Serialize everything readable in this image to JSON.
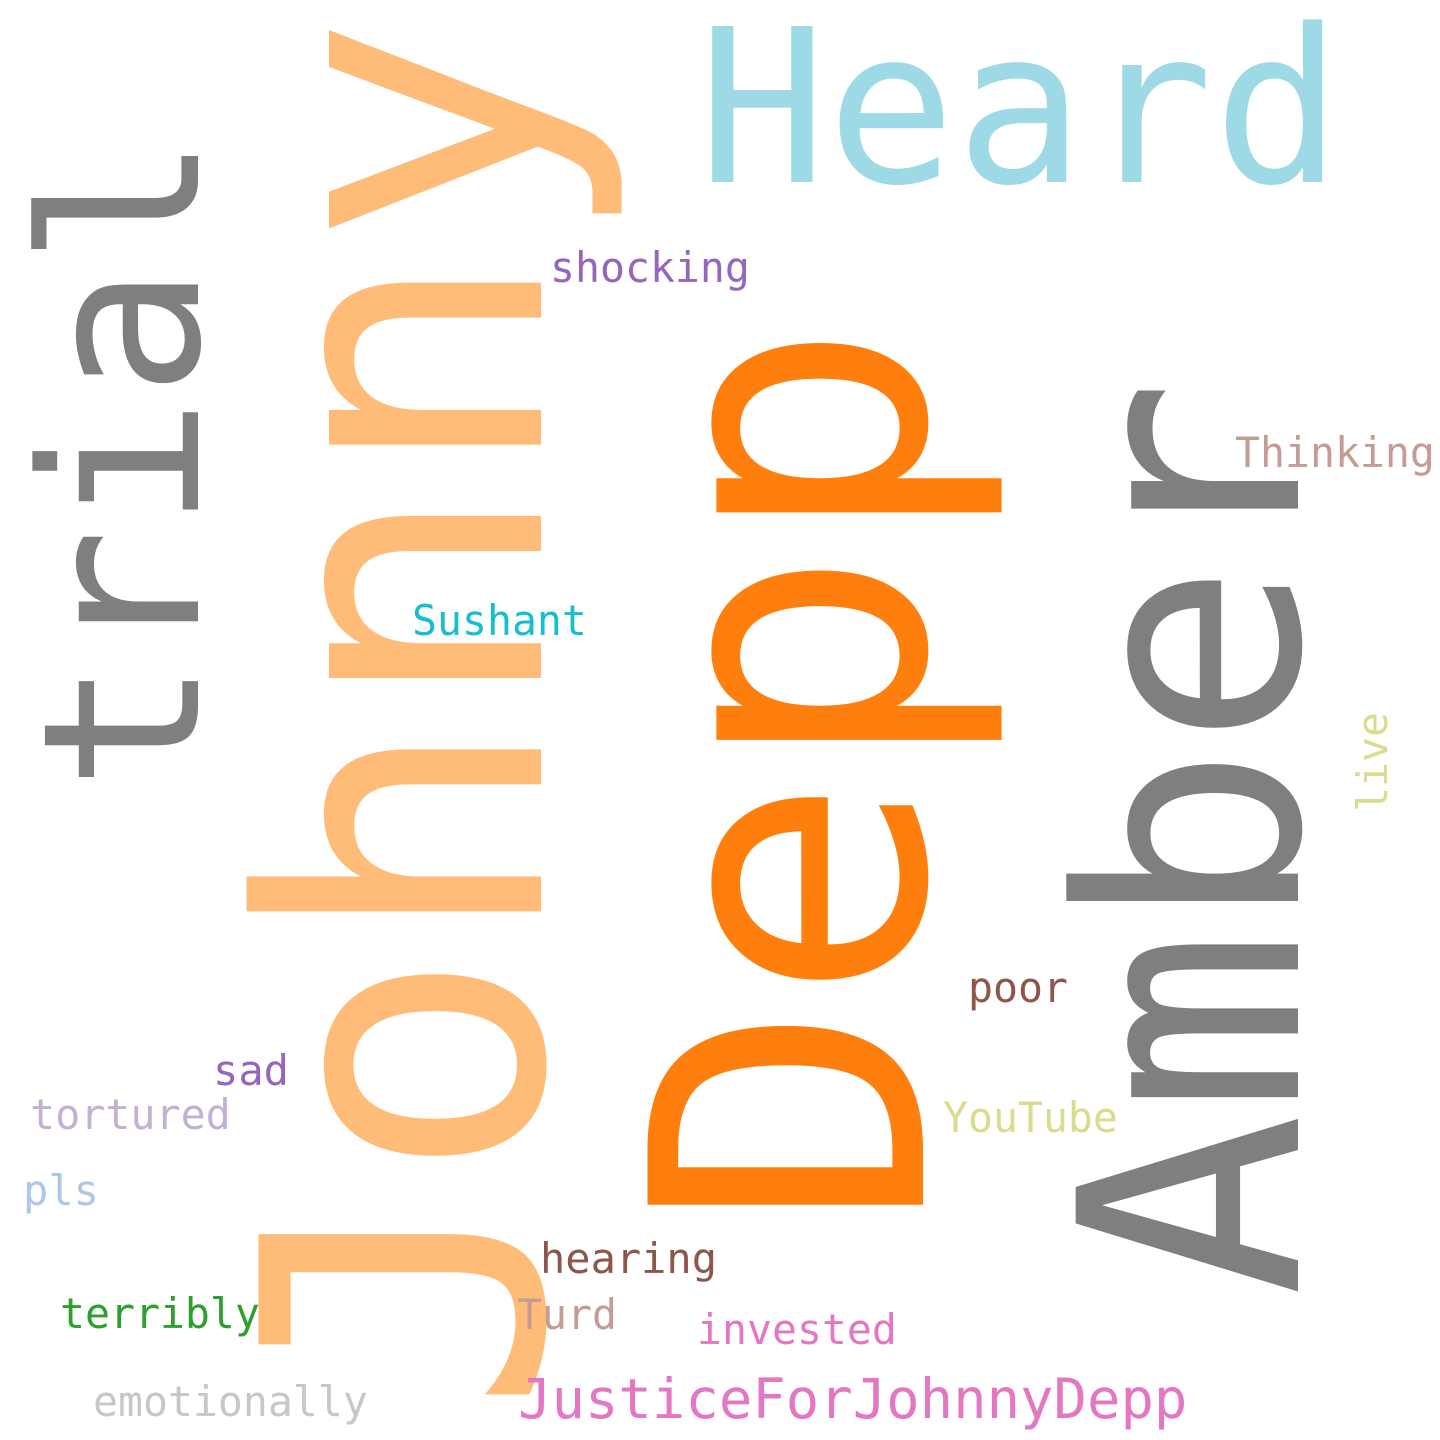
{
  "words": [
    {
      "text": "Heard",
      "color": "#9edae5"
    },
    {
      "text": "Johnny",
      "color": "#ffbb78"
    },
    {
      "text": "Depp",
      "color": "#ff7f0e"
    },
    {
      "text": "trial",
      "color": "#7f7f7f"
    },
    {
      "text": "Amber",
      "color": "#7f7f7f"
    },
    {
      "text": "shocking",
      "color": "#9467bd"
    },
    {
      "text": "Thinking",
      "color": "#c49c94"
    },
    {
      "text": "Sushant",
      "color": "#17becf"
    },
    {
      "text": "live",
      "color": "#dbdb8d"
    },
    {
      "text": "poor",
      "color": "#8c564b"
    },
    {
      "text": "sad",
      "color": "#9467bd"
    },
    {
      "text": "tortured",
      "color": "#c5b0d5"
    },
    {
      "text": "YouTube",
      "color": "#dbdb8d"
    },
    {
      "text": "pls",
      "color": "#aec7e8"
    },
    {
      "text": "hearing",
      "color": "#8c564b"
    },
    {
      "text": "terribly",
      "color": "#2ca02c"
    },
    {
      "text": "Turd",
      "color": "#c49c94"
    },
    {
      "text": "invested",
      "color": "#e377c2"
    },
    {
      "text": "JusticeForJohnnyDepp",
      "color": "#e377c2"
    },
    {
      "text": "emotionally",
      "color": "#c7c7c7"
    }
  ]
}
